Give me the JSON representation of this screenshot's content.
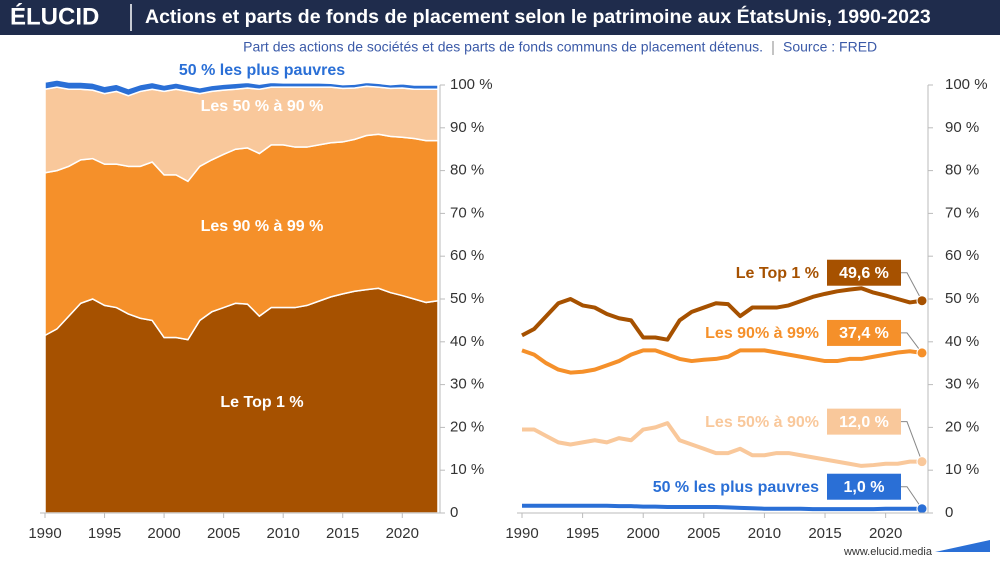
{
  "header": {
    "logo": "ÉLUCID",
    "title": "Actions et parts de fonds de placement selon le patrimoine aux ÉtatsUnis, 1990-2023",
    "subtitle": "Part des actions de sociétés et des parts de fonds communs de placement détenus.",
    "source": "Source : FRED",
    "footer": "www.elucid.media"
  },
  "chart_data": [
    {
      "type": "area",
      "stacked": true,
      "x": [
        1990,
        1991,
        1992,
        1993,
        1994,
        1995,
        1996,
        1997,
        1998,
        1999,
        2000,
        2001,
        2002,
        2003,
        2004,
        2005,
        2006,
        2007,
        2008,
        2009,
        2010,
        2011,
        2012,
        2013,
        2014,
        2015,
        2016,
        2017,
        2018,
        2019,
        2020,
        2021,
        2022,
        2023
      ],
      "xlim": [
        1990,
        2023
      ],
      "xticks": [
        1990,
        1995,
        2000,
        2005,
        2010,
        2015,
        2020
      ],
      "ylim": [
        0,
        100
      ],
      "yticks": [
        {
          "value": 0,
          "label": "0"
        },
        {
          "value": 10,
          "label": "10 %"
        },
        {
          "value": 20,
          "label": "20 %"
        },
        {
          "value": 30,
          "label": "30 %"
        },
        {
          "value": 40,
          "label": "40 %"
        },
        {
          "value": 50,
          "label": "50 %"
        },
        {
          "value": 60,
          "label": "60 %"
        },
        {
          "value": 70,
          "label": "70 %"
        },
        {
          "value": 80,
          "label": "80 %"
        },
        {
          "value": 90,
          "label": "90 %"
        },
        {
          "value": 100,
          "label": "100 %"
        }
      ],
      "series": [
        {
          "name": "Le Top 1 %",
          "color": "#a65100",
          "values": [
            41.5,
            43,
            46,
            49,
            50,
            48.5,
            48,
            46.5,
            45.5,
            45,
            41,
            41,
            40.5,
            45,
            47,
            48,
            49,
            48.8,
            46,
            48,
            48,
            48,
            48.5,
            49.5,
            50.5,
            51.2,
            51.8,
            52.2,
            52.5,
            51.5,
            50.8,
            50,
            49.2,
            49.6
          ]
        },
        {
          "name": "Les 90 % à 99 %",
          "color": "#f5902a",
          "values": [
            38,
            37,
            35,
            33.5,
            32.8,
            33,
            33.5,
            34.5,
            35.5,
            37,
            38,
            38,
            37,
            36,
            35.5,
            35.8,
            36,
            36.5,
            38,
            38,
            38,
            37.5,
            37,
            36.5,
            36,
            35.5,
            35.5,
            36,
            36,
            36.5,
            37,
            37.5,
            37.8,
            37.4
          ]
        },
        {
          "name": "Les 50 % à 90 %",
          "color": "#f9c89b",
          "values": [
            19.5,
            19.5,
            18,
            16.5,
            16,
            16.5,
            17,
            16.5,
            17.5,
            17,
            19.5,
            20,
            21,
            17,
            16,
            15,
            14,
            14,
            15,
            13.5,
            13.5,
            14,
            14,
            13.5,
            13,
            12.5,
            12,
            11.5,
            11,
            11.2,
            11.5,
            11.5,
            12,
            12.0
          ]
        },
        {
          "name": "50 % les plus pauvres",
          "color": "#2a6fd6",
          "values": [
            1.7,
            1.7,
            1.7,
            1.7,
            1.7,
            1.7,
            1.7,
            1.7,
            1.6,
            1.6,
            1.5,
            1.5,
            1.4,
            1.4,
            1.4,
            1.4,
            1.4,
            1.3,
            1.2,
            1.1,
            1.0,
            1.0,
            1.0,
            1.0,
            0.9,
            0.9,
            0.9,
            0.9,
            0.9,
            0.9,
            1.0,
            1.0,
            1.0,
            1.0
          ]
        }
      ]
    },
    {
      "type": "line",
      "x": [
        1990,
        1991,
        1992,
        1993,
        1994,
        1995,
        1996,
        1997,
        1998,
        1999,
        2000,
        2001,
        2002,
        2003,
        2004,
        2005,
        2006,
        2007,
        2008,
        2009,
        2010,
        2011,
        2012,
        2013,
        2014,
        2015,
        2016,
        2017,
        2018,
        2019,
        2020,
        2021,
        2022,
        2023
      ],
      "xlim": [
        1990,
        2023
      ],
      "xticks": [
        1990,
        1995,
        2000,
        2005,
        2010,
        2015,
        2020
      ],
      "ylim": [
        0,
        100
      ],
      "yticks": [
        {
          "value": 0,
          "label": "0"
        },
        {
          "value": 10,
          "label": "10 %"
        },
        {
          "value": 20,
          "label": "20 %"
        },
        {
          "value": 30,
          "label": "30 %"
        },
        {
          "value": 40,
          "label": "40 %"
        },
        {
          "value": 50,
          "label": "50 %"
        },
        {
          "value": 60,
          "label": "60 %"
        },
        {
          "value": 70,
          "label": "70 %"
        },
        {
          "value": 80,
          "label": "80 %"
        },
        {
          "value": 90,
          "label": "90 %"
        },
        {
          "value": 100,
          "label": "100 %"
        }
      ],
      "series": [
        {
          "name": "Le Top 1 %",
          "color": "#a65100",
          "values": [
            41.5,
            43,
            46,
            49,
            50,
            48.5,
            48,
            46.5,
            45.5,
            45,
            41,
            41,
            40.5,
            45,
            47,
            48,
            49,
            48.8,
            46,
            48,
            48,
            48,
            48.5,
            49.5,
            50.5,
            51.2,
            51.8,
            52.2,
            52.5,
            51.5,
            50.8,
            50,
            49.2,
            49.6
          ],
          "value_labels": [
            null,
            null,
            null,
            null,
            null,
            null,
            null,
            null,
            null,
            null,
            null,
            null,
            null,
            null,
            null,
            null,
            null,
            null,
            null,
            null,
            null,
            null,
            null,
            null,
            null,
            null,
            null,
            null,
            null,
            null,
            null,
            null,
            null,
            "49,6 %"
          ]
        },
        {
          "name": "Les 90% à 99%",
          "color": "#f5902a",
          "values": [
            38,
            37,
            35,
            33.5,
            32.8,
            33,
            33.5,
            34.5,
            35.5,
            37,
            38,
            38,
            37,
            36,
            35.5,
            35.8,
            36,
            36.5,
            38,
            38,
            38,
            37.5,
            37,
            36.5,
            36,
            35.5,
            35.5,
            36,
            36,
            36.5,
            37,
            37.5,
            37.8,
            37.4
          ],
          "value_labels": [
            null,
            null,
            null,
            null,
            null,
            null,
            null,
            null,
            null,
            null,
            null,
            null,
            null,
            null,
            null,
            null,
            null,
            null,
            null,
            null,
            null,
            null,
            null,
            null,
            null,
            null,
            null,
            null,
            null,
            null,
            null,
            null,
            null,
            "37,4 %"
          ]
        },
        {
          "name": "Les 50% à 90%",
          "color": "#f9c89b",
          "values": [
            19.5,
            19.5,
            18,
            16.5,
            16,
            16.5,
            17,
            16.5,
            17.5,
            17,
            19.5,
            20,
            21,
            17,
            16,
            15,
            14,
            14,
            15,
            13.5,
            13.5,
            14,
            14,
            13.5,
            13,
            12.5,
            12,
            11.5,
            11,
            11.2,
            11.5,
            11.5,
            12,
            12.0
          ],
          "value_labels": [
            null,
            null,
            null,
            null,
            null,
            null,
            null,
            null,
            null,
            null,
            null,
            null,
            null,
            null,
            null,
            null,
            null,
            null,
            null,
            null,
            null,
            null,
            null,
            null,
            null,
            null,
            null,
            null,
            null,
            null,
            null,
            null,
            null,
            "12,0 %"
          ]
        },
        {
          "name": "50 % les plus pauvres",
          "color": "#2a6fd6",
          "values": [
            1.7,
            1.7,
            1.7,
            1.7,
            1.7,
            1.7,
            1.7,
            1.7,
            1.6,
            1.6,
            1.5,
            1.5,
            1.4,
            1.4,
            1.4,
            1.4,
            1.4,
            1.3,
            1.2,
            1.1,
            1.0,
            1.0,
            1.0,
            1.0,
            0.9,
            0.9,
            0.9,
            0.9,
            0.9,
            0.9,
            1.0,
            1.0,
            1.0,
            1.0
          ],
          "value_labels": [
            null,
            null,
            null,
            null,
            null,
            null,
            null,
            null,
            null,
            null,
            null,
            null,
            null,
            null,
            null,
            null,
            null,
            null,
            null,
            null,
            null,
            null,
            null,
            null,
            null,
            null,
            null,
            null,
            null,
            null,
            null,
            null,
            null,
            "1,0 %"
          ]
        }
      ]
    }
  ]
}
